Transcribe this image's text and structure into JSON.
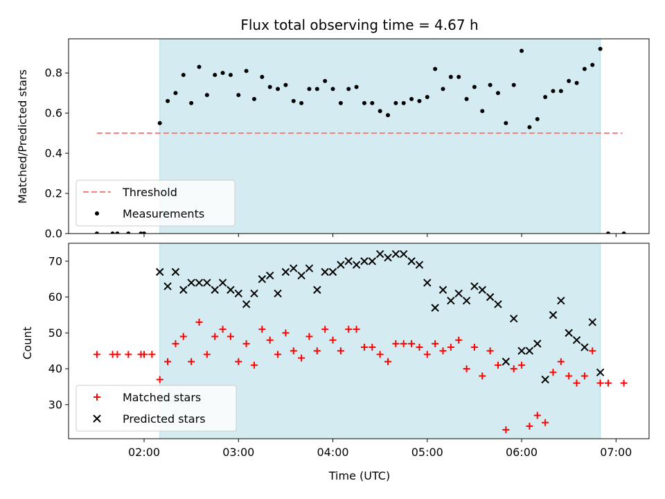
{
  "chart_data": [
    {
      "type": "scatter",
      "title": "Flux total observing time = 4.67 h",
      "ylabel": "Matched/Predicted stars",
      "xlabel": "",
      "x_unit": "hours UTC",
      "xlim": [
        "01:12",
        "07:21"
      ],
      "ylim": [
        0,
        0.97
      ],
      "yticks": [
        0.0,
        0.2,
        0.4,
        0.6,
        0.8
      ],
      "ytick_labels": [
        "0.0",
        "0.2",
        "0.4",
        "0.6",
        "0.8"
      ],
      "shaded_span": {
        "from": "02:10",
        "to": "06:50",
        "color": "#d4ebf1"
      },
      "threshold": {
        "name": "Threshold",
        "from": "01:30",
        "to": "07:04",
        "value": 0.5,
        "color": "#f08080",
        "style": "dashed"
      },
      "legend": {
        "placement": "lower-left",
        "entries": [
          "Threshold",
          "Measurements"
        ]
      },
      "series": [
        {
          "name": "Measurements",
          "marker": "dot",
          "color": "#000000",
          "x": [
            "01:30",
            "01:40",
            "01:43",
            "01:50",
            "01:58",
            "02:00",
            "02:10",
            "02:15",
            "02:20",
            "02:25",
            "02:30",
            "02:35",
            "02:40",
            "02:45",
            "02:50",
            "02:55",
            "03:00",
            "03:05",
            "03:10",
            "03:15",
            "03:20",
            "03:25",
            "03:30",
            "03:35",
            "03:40",
            "03:45",
            "03:50",
            "03:55",
            "04:00",
            "04:05",
            "04:10",
            "04:15",
            "04:20",
            "04:25",
            "04:30",
            "04:35",
            "04:40",
            "04:45",
            "04:50",
            "04:55",
            "05:00",
            "05:05",
            "05:10",
            "05:15",
            "05:20",
            "05:25",
            "05:30",
            "05:35",
            "05:40",
            "05:45",
            "05:50",
            "05:55",
            "06:00",
            "06:05",
            "06:10",
            "06:15",
            "06:20",
            "06:25",
            "06:30",
            "06:35",
            "06:40",
            "06:45",
            "06:50",
            "06:55",
            "07:05"
          ],
          "y": [
            0.0,
            0.0,
            0.0,
            0.0,
            0.0,
            0.0,
            0.55,
            0.66,
            0.7,
            0.79,
            0.65,
            0.83,
            0.69,
            0.79,
            0.8,
            0.79,
            0.69,
            0.81,
            0.67,
            0.78,
            0.73,
            0.72,
            0.74,
            0.66,
            0.65,
            0.72,
            0.72,
            0.76,
            0.72,
            0.65,
            0.72,
            0.73,
            0.65,
            0.65,
            0.61,
            0.59,
            0.65,
            0.65,
            0.67,
            0.66,
            0.68,
            0.82,
            0.72,
            0.78,
            0.78,
            0.67,
            0.73,
            0.61,
            0.74,
            0.7,
            0.55,
            0.74,
            0.91,
            0.53,
            0.57,
            0.68,
            0.71,
            0.71,
            0.76,
            0.75,
            0.82,
            0.84,
            0.92,
            0.0,
            0.0
          ]
        }
      ]
    },
    {
      "type": "scatter",
      "title": "",
      "ylabel": "Count",
      "xlabel": "Time (UTC)",
      "xlim": [
        "01:12",
        "07:21"
      ],
      "xticks": [
        "02:00",
        "03:00",
        "04:00",
        "05:00",
        "06:00",
        "07:00"
      ],
      "ylim": [
        20.5,
        75
      ],
      "yticks": [
        30,
        40,
        50,
        60,
        70
      ],
      "shaded_span": {
        "from": "02:10",
        "to": "06:50",
        "color": "#d4ebf1"
      },
      "legend": {
        "placement": "lower-left",
        "entries": [
          "Matched stars",
          "Predicted stars"
        ]
      },
      "series": [
        {
          "name": "Matched stars",
          "marker": "plus",
          "color": "#ff0000",
          "x": [
            "01:30",
            "01:40",
            "01:43",
            "01:50",
            "01:58",
            "02:00",
            "02:05",
            "02:10",
            "02:15",
            "02:20",
            "02:25",
            "02:30",
            "02:35",
            "02:40",
            "02:45",
            "02:50",
            "02:55",
            "03:00",
            "03:05",
            "03:10",
            "03:15",
            "03:20",
            "03:25",
            "03:30",
            "03:35",
            "03:40",
            "03:45",
            "03:50",
            "03:55",
            "04:00",
            "04:05",
            "04:10",
            "04:15",
            "04:20",
            "04:25",
            "04:30",
            "04:35",
            "04:40",
            "04:45",
            "04:50",
            "04:55",
            "05:00",
            "05:05",
            "05:10",
            "05:15",
            "05:20",
            "05:25",
            "05:30",
            "05:35",
            "05:40",
            "05:45",
            "05:50",
            "05:55",
            "06:00",
            "06:05",
            "06:10",
            "06:15",
            "06:20",
            "06:25",
            "06:30",
            "06:35",
            "06:40",
            "06:45",
            "06:50",
            "06:55",
            "07:05"
          ],
          "y": [
            44,
            44,
            44,
            44,
            44,
            44,
            44,
            37,
            42,
            47,
            49,
            42,
            53,
            44,
            49,
            51,
            49,
            42,
            47,
            41,
            51,
            48,
            44,
            50,
            45,
            43,
            49,
            45,
            51,
            48,
            45,
            51,
            51,
            46,
            46,
            44,
            42,
            47,
            47,
            47,
            46,
            44,
            47,
            45,
            46,
            48,
            40,
            46,
            38,
            45,
            41,
            23,
            40,
            41,
            24,
            27,
            25,
            39,
            42,
            38,
            36,
            38,
            45,
            36,
            36,
            36
          ]
        },
        {
          "name": "Predicted stars",
          "marker": "x",
          "color": "#000000",
          "x": [
            "02:10",
            "02:15",
            "02:20",
            "02:25",
            "02:30",
            "02:35",
            "02:40",
            "02:45",
            "02:50",
            "02:55",
            "03:00",
            "03:05",
            "03:10",
            "03:15",
            "03:20",
            "03:25",
            "03:30",
            "03:35",
            "03:40",
            "03:45",
            "03:50",
            "03:55",
            "04:00",
            "04:05",
            "04:10",
            "04:15",
            "04:20",
            "04:25",
            "04:30",
            "04:35",
            "04:40",
            "04:45",
            "04:50",
            "04:55",
            "05:00",
            "05:05",
            "05:10",
            "05:15",
            "05:20",
            "05:25",
            "05:30",
            "05:35",
            "05:40",
            "05:45",
            "05:50",
            "05:55",
            "06:00",
            "06:05",
            "06:10",
            "06:15",
            "06:20",
            "06:25",
            "06:30",
            "06:35",
            "06:40",
            "06:45",
            "06:50"
          ],
          "y": [
            67,
            63,
            67,
            62,
            64,
            64,
            64,
            62,
            64,
            62,
            61,
            58,
            61,
            65,
            66,
            61,
            67,
            68,
            66,
            68,
            62,
            67,
            67,
            69,
            70,
            69,
            70,
            70,
            72,
            71,
            72,
            72,
            70,
            69,
            64,
            57,
            62,
            59,
            61,
            59,
            63,
            62,
            60,
            58,
            42,
            54,
            45,
            45,
            47,
            37,
            55,
            59,
            50,
            48,
            46,
            53,
            39
          ]
        }
      ]
    }
  ]
}
